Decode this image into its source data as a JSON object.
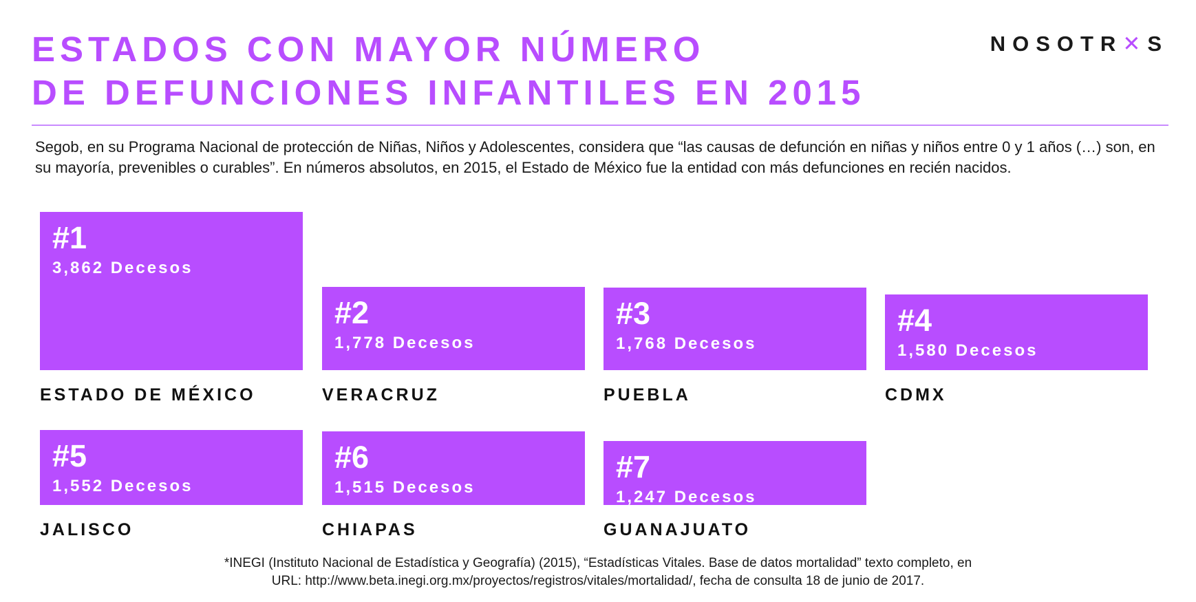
{
  "title": {
    "line1": "ESTADOS CON MAYOR NÚMERO",
    "line2": "DE DEFUNCIONES INFANTILES EN 2015"
  },
  "logo": {
    "pre": "NOSOTR",
    "mark": "✕",
    "post": "S",
    "color": "#b84dff"
  },
  "intro": "Segob, en su Programa Nacional de protección de Niñas, Niños y Adolescentes, considera que “las causas de defunción en niñas y niños entre 0 y 1 años (…) son, en su mayoría, prevenibles o curables”. En números absolutos, en 2015, el Estado de México fue la entidad con más defunciones en recién nacidos.",
  "source": {
    "line1": "*INEGI (Instituto Nacional de Estadística y Geografía) (2015), “Estadísticas Vitales. Base de datos mortalidad” texto completo, en",
    "line2": "URL: http://www.beta.inegi.org.mx/proyectos/registros/vitales/mortalidad/, fecha de consulta 18 de junio de 2017."
  },
  "accent_color": "#b84dff",
  "chart_data": {
    "type": "bar",
    "categories": [
      "ESTADO DE MÉXICO",
      "VERACRUZ",
      "PUEBLA",
      "CDMX",
      "JALISCO",
      "CHIAPAS",
      "GUANAJUATO"
    ],
    "values": [
      3862,
      1778,
      1768,
      1580,
      1552,
      1515,
      1247
    ],
    "ranks": [
      "#1",
      "#2",
      "#3",
      "#4",
      "#5",
      "#6",
      "#7"
    ],
    "labels": [
      "3,862 Decesos",
      "1,778 Decesos",
      "1,768 Decesos",
      "1,580 Decesos",
      "1,552 Decesos",
      "1,515 Decesos",
      "1,247 Decesos"
    ]
  }
}
